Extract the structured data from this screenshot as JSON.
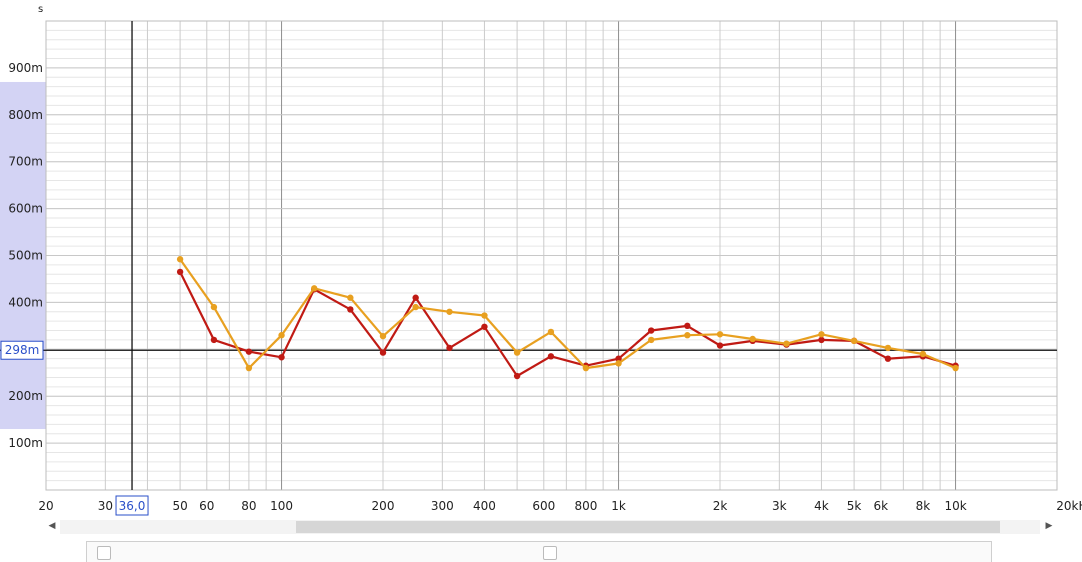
{
  "chart_data": {
    "type": "line",
    "y_unit": "s",
    "x_unit": "kHz",
    "x_scale": "log",
    "xlim": [
      20,
      20000
    ],
    "ylim": [
      0,
      1.0
    ],
    "grid": true,
    "x_ticks": [
      {
        "value": 20,
        "label": "20"
      },
      {
        "value": 30,
        "label": "30"
      },
      {
        "value": 50,
        "label": "50"
      },
      {
        "value": 60,
        "label": "60"
      },
      {
        "value": 80,
        "label": "80"
      },
      {
        "value": 100,
        "label": "100"
      },
      {
        "value": 200,
        "label": "200"
      },
      {
        "value": 300,
        "label": "300"
      },
      {
        "value": 400,
        "label": "400"
      },
      {
        "value": 600,
        "label": "600"
      },
      {
        "value": 800,
        "label": "800"
      },
      {
        "value": 1000,
        "label": "1k"
      },
      {
        "value": 2000,
        "label": "2k"
      },
      {
        "value": 3000,
        "label": "3k"
      },
      {
        "value": 4000,
        "label": "4k"
      },
      {
        "value": 5000,
        "label": "5k"
      },
      {
        "value": 6000,
        "label": "6k"
      },
      {
        "value": 8000,
        "label": "8k"
      },
      {
        "value": 10000,
        "label": "10k"
      },
      {
        "value": 20000,
        "label": "20kHz"
      }
    ],
    "y_ticks": [
      {
        "value": 0.1,
        "label": "100m"
      },
      {
        "value": 0.2,
        "label": "200m"
      },
      {
        "value": 0.4,
        "label": "400m"
      },
      {
        "value": 0.5,
        "label": "500m"
      },
      {
        "value": 0.6,
        "label": "600m"
      },
      {
        "value": 0.7,
        "label": "700m"
      },
      {
        "value": 0.8,
        "label": "800m"
      },
      {
        "value": 0.9,
        "label": "900m"
      }
    ],
    "y_range_highlight": [
      0.13,
      0.87
    ],
    "cursor": {
      "x": 36,
      "x_label": "36,0",
      "y": 0.298,
      "y_label": "298m"
    },
    "x": [
      50,
      63,
      80,
      100,
      125,
      160,
      200,
      250,
      315,
      400,
      500,
      630,
      800,
      1000,
      1250,
      1600,
      2000,
      2500,
      3150,
      4000,
      5000,
      6300,
      8000,
      10000
    ],
    "series": [
      {
        "color": "#c01a14",
        "values": [
          0.465,
          0.32,
          0.295,
          0.283,
          0.428,
          0.385,
          0.293,
          0.41,
          0.303,
          0.348,
          0.243,
          0.285,
          0.265,
          0.28,
          0.34,
          0.35,
          0.308,
          0.318,
          0.31,
          0.32,
          0.318,
          0.28,
          0.285,
          0.265
        ]
      },
      {
        "color": "#e8a020",
        "values": [
          0.492,
          0.39,
          0.26,
          0.33,
          0.43,
          0.41,
          0.328,
          0.39,
          0.38,
          0.372,
          0.293,
          0.337,
          0.26,
          0.27,
          0.32,
          0.33,
          0.332,
          0.322,
          0.312,
          0.332,
          0.318,
          0.303,
          0.29,
          0.26
        ]
      }
    ]
  },
  "controls": {
    "scroll_left_icon": "triangle-left-icon",
    "scroll_right_icon": "triangle-right-icon"
  }
}
